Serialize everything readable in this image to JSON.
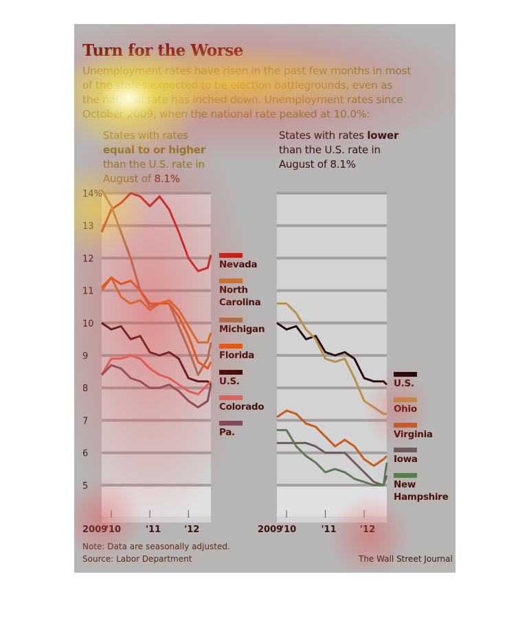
{
  "header": {
    "title": "Turn for the Worse",
    "subtitle": "Unemployment rates have risen in the past few months in most of the states expected to be election battlegrounds, even as the national rate has inched down. Unemployment rates since October 2009, when the national rate peaked at 10.0%:"
  },
  "panels": {
    "left": {
      "pre": "States with rates ",
      "bold": "equal to or higher",
      "post": " than the U.S. rate in August of ",
      "value": "8.1%"
    },
    "right": {
      "pre": "States with rates ",
      "bold": "lower",
      "post": " than the U.S. rate in August of ",
      "value": "8.1%"
    }
  },
  "footer": {
    "note": "Note: Data are seasonally adjusted.",
    "source": "Source: Labor Department",
    "credit": "The Wall Street Journal"
  },
  "chart_data": [
    {
      "type": "line",
      "title": "States with rates equal to or higher than the U.S. rate in August of 8.1%",
      "x_months_since_oct_2009": [
        0,
        3,
        6,
        9,
        12,
        15,
        18,
        21,
        24,
        27,
        30,
        33,
        34
      ],
      "ylim": [
        4,
        14
      ],
      "yticks": [
        "14%",
        "13",
        "12",
        "11",
        "10",
        "9",
        "8",
        "7",
        "6",
        "5"
      ],
      "xticks": [
        "2009",
        "'10",
        "'11",
        "'12"
      ],
      "series": [
        {
          "name": "Nevada",
          "color": "#c0201a",
          "values": [
            12.8,
            13.5,
            13.7,
            14.0,
            13.9,
            13.6,
            13.9,
            13.5,
            12.8,
            12.0,
            11.6,
            11.7,
            12.1
          ]
        },
        {
          "name": "North Carolina",
          "color": "#d07020",
          "values": [
            11.0,
            11.4,
            10.8,
            10.6,
            10.7,
            10.4,
            10.6,
            10.7,
            10.4,
            9.9,
            9.4,
            9.4,
            9.7
          ]
        },
        {
          "name": "Michigan",
          "color": "#a8704a",
          "values": [
            14.1,
            13.6,
            12.8,
            12.0,
            11.0,
            10.5,
            10.6,
            10.6,
            9.9,
            9.2,
            8.4,
            8.9,
            9.4
          ]
        },
        {
          "name": "Florida",
          "color": "#e05a10",
          "values": [
            11.1,
            11.4,
            11.2,
            11.3,
            11.0,
            10.6,
            10.6,
            10.6,
            10.2,
            9.6,
            8.8,
            8.6,
            8.8
          ]
        },
        {
          "name": "U.S.",
          "color": "#3a0804",
          "values": [
            10.0,
            9.8,
            9.9,
            9.5,
            9.6,
            9.1,
            9.0,
            9.1,
            8.9,
            8.3,
            8.2,
            8.2,
            8.1
          ]
        },
        {
          "name": "Colorado",
          "color": "#e06058",
          "values": [
            8.4,
            8.9,
            8.9,
            9.0,
            8.9,
            8.6,
            8.4,
            8.3,
            8.1,
            7.9,
            7.8,
            8.1,
            8.2
          ]
        },
        {
          "name": "Pa.",
          "color": "#7a4a5a",
          "values": [
            8.4,
            8.7,
            8.6,
            8.3,
            8.2,
            8.0,
            8.0,
            8.1,
            7.9,
            7.6,
            7.4,
            7.6,
            8.1
          ]
        }
      ]
    },
    {
      "type": "line",
      "title": "States with rates lower than the U.S. rate in August of 8.1%",
      "x_months_since_oct_2009": [
        0,
        3,
        6,
        9,
        12,
        15,
        18,
        21,
        24,
        27,
        30,
        33,
        34
      ],
      "ylim": [
        4,
        14
      ],
      "xticks": [
        "2009",
        "'10",
        "'11",
        "'12"
      ],
      "series": [
        {
          "name": "U.S.",
          "color": "#2a0606",
          "values": [
            10.0,
            9.8,
            9.9,
            9.5,
            9.6,
            9.1,
            9.0,
            9.1,
            8.9,
            8.3,
            8.2,
            8.2,
            8.1
          ]
        },
        {
          "name": "Ohio",
          "color": "#b8904a",
          "values": [
            10.6,
            10.6,
            10.3,
            9.8,
            9.5,
            8.9,
            8.8,
            8.9,
            8.3,
            7.6,
            7.4,
            7.2,
            7.2
          ]
        },
        {
          "name": "Virginia",
          "color": "#c85a1a",
          "values": [
            7.1,
            7.3,
            7.2,
            6.9,
            6.8,
            6.5,
            6.2,
            6.4,
            6.2,
            5.8,
            5.6,
            5.8,
            5.9
          ]
        },
        {
          "name": "Iowa",
          "color": "#6e5a5e",
          "values": [
            6.3,
            6.3,
            6.3,
            6.3,
            6.2,
            6.0,
            6.0,
            6.0,
            5.7,
            5.4,
            5.1,
            5.0,
            5.3
          ]
        },
        {
          "name": "New Hampshire",
          "color": "#5a7a52",
          "values": [
            6.7,
            6.7,
            6.2,
            5.9,
            5.7,
            5.4,
            5.5,
            5.4,
            5.2,
            5.1,
            5.0,
            5.0,
            5.7
          ]
        }
      ]
    }
  ]
}
